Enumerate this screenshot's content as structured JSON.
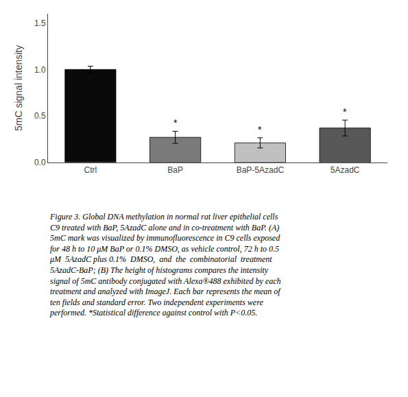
{
  "chart_data": {
    "type": "bar",
    "categories": [
      "Ctrl",
      "BaP",
      "BaP-5AzadC",
      "5AzadC"
    ],
    "values": [
      1.0,
      0.27,
      0.21,
      0.37
    ],
    "errors": [
      0.035,
      0.065,
      0.055,
      0.085
    ],
    "colors": [
      "#0a0a0a",
      "#7a7a7a",
      "#c0c0c0",
      "#585858"
    ],
    "significance": [
      null,
      "*",
      "*",
      "*"
    ],
    "y_label": "5mC signal intensity",
    "ylim": [
      0.0,
      1.6
    ],
    "yticks": [
      {
        "value": 0.0,
        "label": "0.0"
      },
      0.5,
      {
        "value": 1.0,
        "label": "1.0"
      },
      1.5
    ],
    "grid": false,
    "annotations": [
      "Figure 3. Global DNA methylation in normal rat liver epithelial cells",
      "C9 treated with BaP, 5AzadC alone and in co-treatment with BaP. (A)",
      "5mC mark was visualized by immunofluorescence in C9 cells exposed",
      "for 48 h to 10 μM BaP or 0.1% DMSO, as vehicle control, 72 h to 0.5",
      "μM  5AzadC plus 0.1%  DMSO,  and  the  combinatorial  treatment",
      "5AzadC-BaP; (B) The height of histograms compares the intensity",
      "signal of 5mC antibody conjugated with Alexa®488 exhibited by each",
      "treatment and analyzed with ImageJ. Each bar represents the mean of",
      "ten fields and standard error. Two independent experiments were",
      "performed. *Statistical difference against control with P<0.05."
    ]
  }
}
